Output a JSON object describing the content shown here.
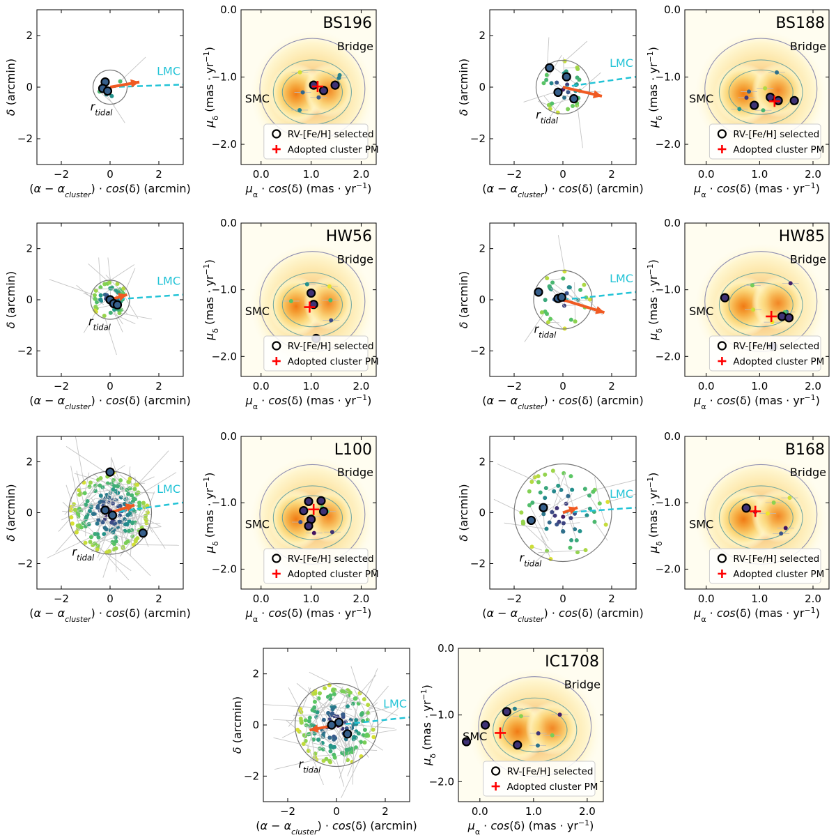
{
  "figure": {
    "spatial_xlabel": "(α − α_cluster) · cos(δ) (arcmin)",
    "spatial_ylabel": "δ (arcmin)",
    "pm_xlabel": "μ_α · cos(δ) (mas · yr⁻¹)",
    "pm_ylabel": "μ_δ (mas · yr⁻¹)",
    "lmc_label": "LMC",
    "tidal_label": "r_tidal",
    "bridge_label": "Bridge",
    "smc_label": "SMC",
    "legend_selected": "RV-[Fe/H] selected",
    "legend_adopted": "Adopted cluster PM",
    "colors": {
      "lmc_arrow": "#22c3d6",
      "pm_arrow": "#f05a22",
      "adopted_cross": "#ff0000",
      "contour": "#6b7aa0",
      "density_peak": "#f08a1a",
      "density_edge": "#fff6c8"
    }
  },
  "chart_data": [
    {
      "type": "scatter",
      "cluster": "BS196",
      "spatial": {
        "xlim": [
          -3,
          3
        ],
        "ylim": [
          -3,
          3
        ],
        "xticks": [
          -2,
          0,
          2
        ],
        "yticks": [
          -2,
          0,
          2
        ],
        "r_tidal": 0.7,
        "pm_arrow": {
          "from": [
            0,
            0
          ],
          "to": [
            1.2,
            0.2
          ]
        },
        "lmc_arrow": {
          "from": [
            0,
            0
          ],
          "to": [
            3,
            0.1
          ]
        },
        "selected": [
          [
            -0.2,
            0.2
          ],
          [
            -0.3,
            -0.05
          ],
          [
            -0.1,
            -0.15
          ]
        ],
        "members_count": 4
      },
      "pm": {
        "xlim": [
          -0.4,
          2.3
        ],
        "ylim": [
          -2.3,
          0.0
        ],
        "xticks": [
          0.0,
          1.0,
          2.0
        ],
        "yticks": [
          0.0,
          -1.0,
          -2.0
        ],
        "selected": [
          [
            1.05,
            -1.12
          ],
          [
            1.25,
            -1.2
          ],
          [
            1.48,
            -1.12
          ]
        ],
        "adopted": [
          1.13,
          -1.14
        ]
      }
    },
    {
      "type": "scatter",
      "cluster": "BS188",
      "spatial": {
        "xlim": [
          -3,
          3
        ],
        "ylim": [
          -3,
          3
        ],
        "xticks": [
          -2,
          0,
          2
        ],
        "yticks": [
          -2,
          0,
          2
        ],
        "r_tidal": 1.1,
        "pm_arrow": {
          "from": [
            0,
            0
          ],
          "to": [
            1.6,
            -0.35
          ]
        },
        "lmc_arrow": {
          "from": [
            0,
            0
          ],
          "to": [
            3,
            0.4
          ]
        },
        "selected": [
          [
            -0.55,
            0.75
          ],
          [
            0.15,
            0.4
          ],
          [
            -0.2,
            -0.2
          ],
          [
            0.45,
            -0.45
          ]
        ],
        "members_count": 30
      },
      "pm": {
        "xlim": [
          -0.4,
          2.3
        ],
        "ylim": [
          -2.3,
          0.0
        ],
        "xticks": [
          0.0,
          1.0,
          2.0
        ],
        "yticks": [
          0.0,
          -1.0,
          -2.0
        ],
        "selected": [
          [
            0.9,
            -1.42
          ],
          [
            1.2,
            -1.3
          ],
          [
            1.35,
            -1.35
          ],
          [
            1.65,
            -1.35
          ]
        ],
        "adopted": [
          1.28,
          -1.36
        ]
      }
    },
    {
      "type": "scatter",
      "cluster": "HW56",
      "spatial": {
        "xlim": [
          -3,
          3
        ],
        "ylim": [
          -3,
          3
        ],
        "xticks": [
          -2,
          0,
          2
        ],
        "yticks": [
          -2,
          0,
          2
        ],
        "r_tidal": 0.8,
        "pm_arrow": {
          "from": [
            0,
            0
          ],
          "to": [
            0.7,
            0.2
          ]
        },
        "lmc_arrow": {
          "from": [
            0,
            0
          ],
          "to": [
            3,
            0.2
          ]
        },
        "selected": [
          [
            0.0,
            0.0
          ],
          [
            0.15,
            -0.15
          ],
          [
            0.3,
            -0.2
          ]
        ],
        "members_count": 40
      },
      "pm": {
        "xlim": [
          -0.4,
          2.3
        ],
        "ylim": [
          -2.3,
          0.0
        ],
        "xticks": [
          0.0,
          1.0,
          2.0
        ],
        "yticks": [
          0.0,
          -1.0,
          -2.0
        ],
        "selected": [
          [
            1.0,
            -1.05
          ],
          [
            1.05,
            -1.22
          ],
          [
            1.1,
            -1.73
          ]
        ],
        "adopted": [
          0.97,
          -1.26
        ]
      }
    },
    {
      "type": "scatter",
      "cluster": "HW85",
      "spatial": {
        "xlim": [
          -3,
          3
        ],
        "ylim": [
          -3,
          3
        ],
        "xticks": [
          -2,
          0,
          2
        ],
        "yticks": [
          -2,
          0,
          2
        ],
        "r_tidal": 1.2,
        "pm_arrow": {
          "from": [
            0,
            0
          ],
          "to": [
            1.7,
            -0.5
          ]
        },
        "lmc_arrow": {
          "from": [
            0,
            0
          ],
          "to": [
            3,
            0.3
          ]
        },
        "selected": [
          [
            -1.0,
            0.3
          ],
          [
            -0.2,
            0.05
          ],
          [
            -0.05,
            0.1
          ]
        ],
        "members_count": 30
      },
      "pm": {
        "xlim": [
          -0.4,
          2.3
        ],
        "ylim": [
          -2.3,
          0.0
        ],
        "xticks": [
          0.0,
          1.0,
          2.0
        ],
        "yticks": [
          0.0,
          -1.0,
          -2.0
        ],
        "selected": [
          [
            0.35,
            -1.12
          ],
          [
            1.42,
            -1.4
          ],
          [
            1.55,
            -1.42
          ],
          [
            1.25,
            -1.85
          ]
        ],
        "adopted": [
          1.22,
          -1.4
        ]
      }
    },
    {
      "type": "scatter",
      "cluster": "L100",
      "spatial": {
        "xlim": [
          -3,
          3
        ],
        "ylim": [
          -3,
          3
        ],
        "xticks": [
          -2,
          0,
          2
        ],
        "yticks": [
          -2,
          0,
          2
        ],
        "r_tidal": 1.7,
        "pm_arrow": {
          "from": [
            0,
            0
          ],
          "to": [
            1.0,
            0.3
          ]
        },
        "lmc_arrow": {
          "from": [
            0,
            0
          ],
          "to": [
            3,
            0.4
          ]
        },
        "selected": [
          [
            0.0,
            1.6
          ],
          [
            -0.2,
            0.1
          ],
          [
            0.1,
            -0.1
          ],
          [
            1.35,
            -0.8
          ]
        ],
        "members_count": 200
      },
      "pm": {
        "xlim": [
          -0.4,
          2.3
        ],
        "ylim": [
          -2.3,
          0.0
        ],
        "xticks": [
          0.0,
          1.0,
          2.0
        ],
        "yticks": [
          0.0,
          -1.0,
          -2.0
        ],
        "selected": [
          [
            0.85,
            -1.12
          ],
          [
            0.95,
            -0.98
          ],
          [
            1.0,
            -1.25
          ],
          [
            0.95,
            -1.35
          ],
          [
            1.2,
            -0.97
          ],
          [
            1.25,
            -1.13
          ]
        ],
        "adopted": [
          1.05,
          -1.1
        ]
      }
    },
    {
      "type": "scatter",
      "cluster": "B168",
      "spatial": {
        "xlim": [
          -3,
          3
        ],
        "ylim": [
          -3,
          3
        ],
        "xticks": [
          -2,
          0,
          2
        ],
        "yticks": [
          -2,
          0,
          2
        ],
        "r_tidal": 2.0,
        "pm_arrow": {
          "from": [
            0,
            0
          ],
          "to": [
            0.6,
            0.2
          ]
        },
        "lmc_arrow": {
          "from": [
            0,
            0
          ],
          "to": [
            3,
            0.2
          ]
        },
        "selected": [
          [
            -0.8,
            0.2
          ],
          [
            -1.3,
            -0.3
          ]
        ],
        "members_count": 60
      },
      "pm": {
        "xlim": [
          -0.4,
          2.3
        ],
        "ylim": [
          -2.3,
          0.0
        ],
        "xticks": [
          0.0,
          1.0,
          2.0
        ],
        "yticks": [
          0.0,
          -1.0,
          -2.0
        ],
        "selected": [
          [
            0.75,
            -1.08
          ]
        ],
        "adopted": [
          0.92,
          -1.13
        ]
      }
    },
    {
      "type": "scatter",
      "cluster": "IC1708",
      "spatial": {
        "xlim": [
          -3,
          3
        ],
        "ylim": [
          -3,
          3
        ],
        "xticks": [
          -2,
          0,
          2
        ],
        "yticks": [
          -2,
          0,
          2
        ],
        "r_tidal": 1.7,
        "pm_arrow": {
          "from": [
            0,
            0
          ],
          "to": [
            -1.1,
            -0.2
          ]
        },
        "lmc_arrow": {
          "from": [
            0,
            0
          ],
          "to": [
            3,
            0.3
          ]
        },
        "selected": [
          [
            -0.2,
            0.0
          ],
          [
            0.1,
            0.1
          ],
          [
            0.45,
            -0.35
          ]
        ],
        "members_count": 160
      },
      "pm": {
        "xlim": [
          -0.4,
          2.3
        ],
        "ylim": [
          -2.3,
          0.0
        ],
        "xticks": [
          0.0,
          1.0,
          2.0
        ],
        "yticks": [
          0.0,
          -1.0,
          -2.0
        ],
        "selected": [
          [
            0.5,
            -0.95
          ],
          [
            0.1,
            -1.15
          ],
          [
            -0.25,
            -1.4
          ],
          [
            0.7,
            -1.45
          ]
        ],
        "adopted": [
          0.38,
          -1.27
        ]
      }
    }
  ]
}
